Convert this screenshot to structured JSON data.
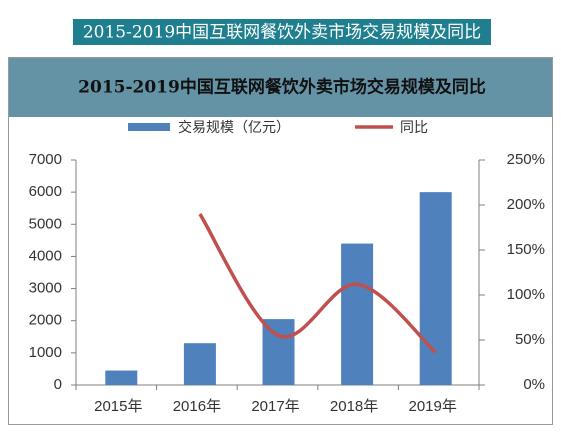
{
  "heading": "2015-2019中国互联网餐饮外卖市场交易规模及同比",
  "chart_data": {
    "type": "bar_line",
    "title": "2015-2019中国互联网餐饮外卖市场交易规模及同比",
    "categories": [
      "2015年",
      "2016年",
      "2017年",
      "2018年",
      "2019年"
    ],
    "series": [
      {
        "name": "交易规模（亿元）",
        "type": "bar",
        "color": "#4f81bd",
        "values": [
          450,
          1300,
          2050,
          4400,
          6000
        ]
      },
      {
        "name": "同比",
        "type": "line",
        "color": "#c0504d",
        "axis": "y2",
        "values": [
          null,
          190,
          55,
          112,
          36
        ]
      }
    ],
    "ylim": [
      0,
      7000
    ],
    "yticks": [
      0,
      1000,
      2000,
      3000,
      4000,
      5000,
      6000,
      7000
    ],
    "y2lim": [
      0,
      250
    ],
    "y2ticks": [
      {
        "value": 0,
        "label": "0%"
      },
      {
        "value": 50,
        "label": "50%"
      },
      {
        "value": 100,
        "label": "100%"
      },
      {
        "value": 150,
        "label": "150%"
      },
      {
        "value": 200,
        "label": "200%"
      },
      {
        "value": 250,
        "label": "250%"
      }
    ],
    "grid": false,
    "legend": "top"
  }
}
